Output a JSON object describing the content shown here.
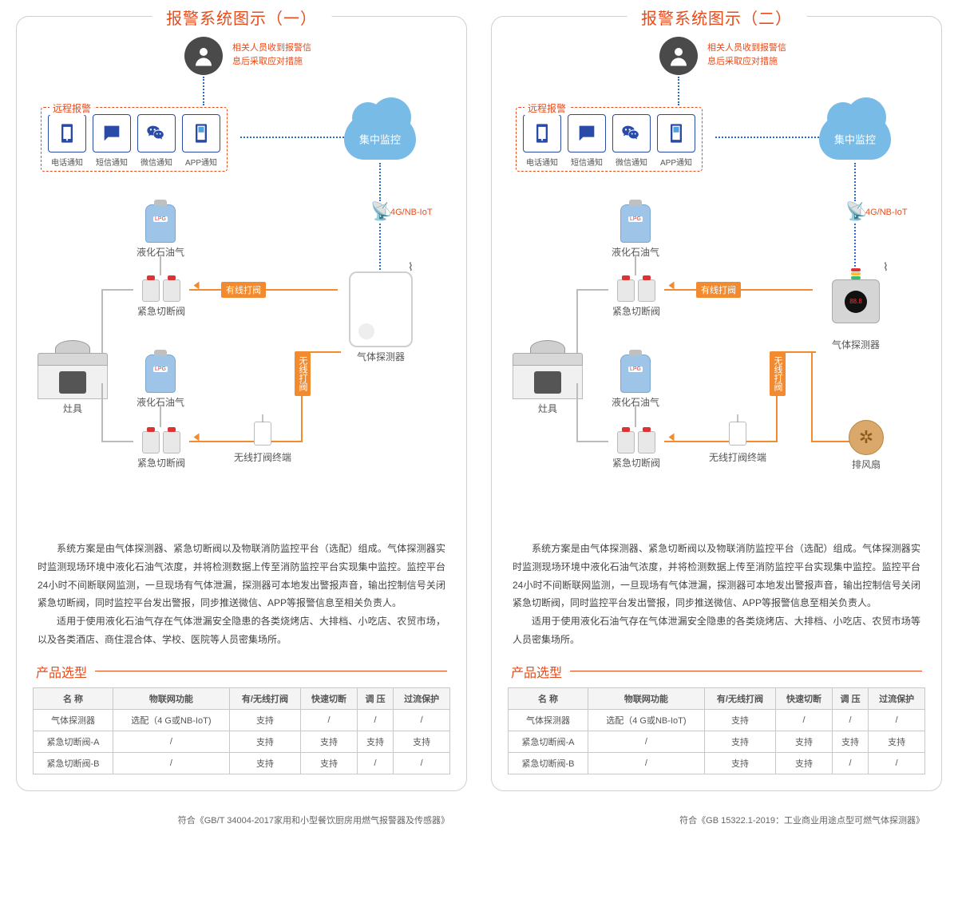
{
  "panels": [
    {
      "title": "报警系统图示（一）",
      "person_msg_l1": "相关人员收到报警信",
      "person_msg_l2": "息后采取应对措施",
      "remote_title": "远程报警",
      "remote_items": [
        "电话通知",
        "短信通知",
        "微信通知",
        "APP通知"
      ],
      "cloud_text": "集中监控",
      "radio_label": "4G/NB-IoT",
      "lpg_label": "液化石油气",
      "valve_label": "紧急切断阀",
      "stove_label": "灶具",
      "wired_tag": "有线打阀",
      "wireless_tag": "无线打阀",
      "terminal_label": "无线打阀终端",
      "detector_label": "气体探测器",
      "desc_p1": "系统方案是由气体探测器、紧急切断阀以及物联消防监控平台（选配）组成。气体探测器实时监测现场环境中液化石油气浓度，并将检测数据上传至消防监控平台实现集中监控。监控平台24小时不间断联网监测，一旦现场有气体泄漏，探测器可本地发出警报声音，输出控制信号关闭紧急切断阀，同时监控平台发出警报，同步推送微信、APP等报警信息至相关负责人。",
      "desc_p2": "适用于使用液化石油气存在气体泄漏安全隐患的各类烧烤店、大排档、小吃店、农贸市场，以及各类酒店、商住混合体、学校、医院等人员密集场所。",
      "sec_title": "产品选型",
      "headers": [
        "名 称",
        "物联网功能",
        "有/无线打阀",
        "快速切断",
        "调 压",
        "过流保护"
      ],
      "rows": [
        [
          "气体探测器",
          "选配（4 G或NB-IoT)",
          "支持",
          "/",
          "/",
          "/"
        ],
        [
          "紧急切断阀-A",
          "/",
          "支持",
          "支持",
          "支持",
          "支持"
        ],
        [
          "紧急切断阀-B",
          "/",
          "支持",
          "支持",
          "/",
          "/"
        ]
      ],
      "footer": "符合《GB/T 34004-2017家用和小型餐饮厨房用燃气报警器及传感器》",
      "detector_style": "a"
    },
    {
      "title": "报警系统图示（二）",
      "person_msg_l1": "相关人员收到报警信",
      "person_msg_l2": "息后采取应对措施",
      "remote_title": "远程报警",
      "remote_items": [
        "电话通知",
        "短信通知",
        "微信通知",
        "APP通知"
      ],
      "cloud_text": "集中监控",
      "radio_label": "4G/NB-IoT",
      "lpg_label": "液化石油气",
      "valve_label": "紧急切断阀",
      "stove_label": "灶具",
      "wired_tag": "有线打阀",
      "wireless_tag": "无线打阀",
      "terminal_label": "无线打阀终端",
      "detector_label": "气体探测器",
      "fan_label": "排风扇",
      "desc_p1": "系统方案是由气体探测器、紧急切断阀以及物联消防监控平台（选配）组成。气体探测器实时监测现场环境中液化石油气浓度，并将检测数据上传至消防监控平台实现集中监控。监控平台24小时不间断联网监测，一旦现场有气体泄漏，探测器可本地发出警报声音，输出控制信号关闭紧急切断阀，同时监控平台发出警报，同步推送微信、APP等报警信息至相关负责人。",
      "desc_p2": "适用于使用液化石油气存在气体泄漏安全隐患的各类烧烤店、大排档、小吃店、农贸市场等人员密集场所。",
      "sec_title": "产品选型",
      "headers": [
        "名 称",
        "物联网功能",
        "有/无线打阀",
        "快速切断",
        "调 压",
        "过流保护"
      ],
      "rows": [
        [
          "气体探测器",
          "选配（4 G或NB-IoT)",
          "支持",
          "/",
          "/",
          "/"
        ],
        [
          "紧急切断阀-A",
          "/",
          "支持",
          "支持",
          "支持",
          "支持"
        ],
        [
          "紧急切断阀-B",
          "/",
          "支持",
          "支持",
          "/",
          "/"
        ]
      ],
      "footer": "符合《GB 15322.1-2019：工业商业用途点型可燃气体探测器》",
      "detector_style": "b",
      "has_fan": true
    }
  ],
  "colors": {
    "accent": "#e74c1c",
    "wire": "#f28b30",
    "link": "#2a6acb",
    "cloud": "#78bbe6",
    "border": "#c8c8c8"
  }
}
